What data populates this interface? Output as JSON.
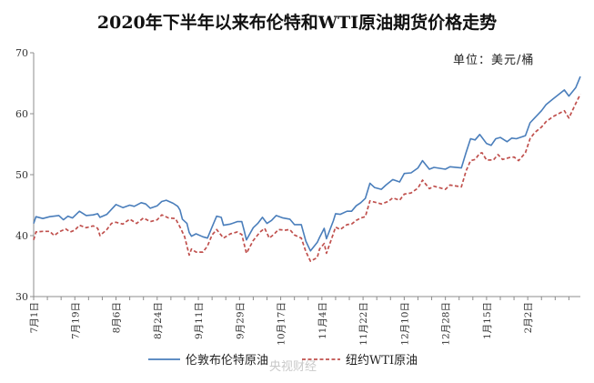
{
  "chart_data": {
    "type": "line",
    "title": "2020年下半年以来布伦特和WTI原油期货价格走势",
    "unit_label": "单位：美元/桶",
    "ylim": [
      30,
      70
    ],
    "yticks": [
      30,
      40,
      50,
      60,
      70
    ],
    "xlim": [
      "2020-07-01",
      "2021-02-25"
    ],
    "xtick_labels": [
      {
        "date": "2020-07-01",
        "label": "7月1日"
      },
      {
        "date": "2020-07-19",
        "label": "7月19日"
      },
      {
        "date": "2020-08-06",
        "label": "8月6日"
      },
      {
        "date": "2020-08-24",
        "label": "8月24日"
      },
      {
        "date": "2020-09-11",
        "label": "9月11日"
      },
      {
        "date": "2020-09-29",
        "label": "9月29日"
      },
      {
        "date": "2020-10-17",
        "label": "10月17日"
      },
      {
        "date": "2020-11-04",
        "label": "11月4日"
      },
      {
        "date": "2020-11-22",
        "label": "11月22日"
      },
      {
        "date": "2020-12-10",
        "label": "12月10日"
      },
      {
        "date": "2020-12-28",
        "label": "12月28日"
      },
      {
        "date": "2021-01-15",
        "label": "1月15日"
      },
      {
        "date": "2021-02-02",
        "label": "2月2日"
      }
    ],
    "grid": false,
    "legend_position": "bottom",
    "series": [
      {
        "name": "伦敦布伦特原油",
        "color": "#4a7ebb",
        "style": "solid",
        "points": [
          [
            "2020-07-01",
            42.0
          ],
          [
            "2020-07-02",
            43.1
          ],
          [
            "2020-07-05",
            42.8
          ],
          [
            "2020-07-08",
            43.1
          ],
          [
            "2020-07-12",
            43.3
          ],
          [
            "2020-07-14",
            42.6
          ],
          [
            "2020-07-16",
            43.2
          ],
          [
            "2020-07-18",
            42.9
          ],
          [
            "2020-07-21",
            44.0
          ],
          [
            "2020-07-24",
            43.3
          ],
          [
            "2020-07-27",
            43.4
          ],
          [
            "2020-07-29",
            43.6
          ],
          [
            "2020-07-30",
            43.0
          ],
          [
            "2020-08-02",
            43.5
          ],
          [
            "2020-08-04",
            44.3
          ],
          [
            "2020-08-06",
            45.1
          ],
          [
            "2020-08-09",
            44.6
          ],
          [
            "2020-08-12",
            45.0
          ],
          [
            "2020-08-14",
            44.8
          ],
          [
            "2020-08-17",
            45.4
          ],
          [
            "2020-08-19",
            45.2
          ],
          [
            "2020-08-21",
            44.5
          ],
          [
            "2020-08-24",
            44.9
          ],
          [
            "2020-08-26",
            45.6
          ],
          [
            "2020-08-28",
            45.8
          ],
          [
            "2020-08-31",
            45.3
          ],
          [
            "2020-09-02",
            44.8
          ],
          [
            "2020-09-03",
            44.2
          ],
          [
            "2020-09-04",
            42.7
          ],
          [
            "2020-09-06",
            42.0
          ],
          [
            "2020-09-07",
            40.5
          ],
          [
            "2020-09-08",
            39.9
          ],
          [
            "2020-09-10",
            40.3
          ],
          [
            "2020-09-13",
            39.8
          ],
          [
            "2020-09-15",
            39.6
          ],
          [
            "2020-09-17",
            41.4
          ],
          [
            "2020-09-19",
            43.2
          ],
          [
            "2020-09-21",
            43.0
          ],
          [
            "2020-09-22",
            41.7
          ],
          [
            "2020-09-25",
            41.9
          ],
          [
            "2020-09-28",
            42.3
          ],
          [
            "2020-09-30",
            42.3
          ],
          [
            "2020-10-01",
            40.9
          ],
          [
            "2020-10-02",
            39.3
          ],
          [
            "2020-10-05",
            41.3
          ],
          [
            "2020-10-07",
            42.0
          ],
          [
            "2020-10-09",
            43.0
          ],
          [
            "2020-10-11",
            42.0
          ],
          [
            "2020-10-13",
            42.5
          ],
          [
            "2020-10-15",
            43.3
          ],
          [
            "2020-10-18",
            42.9
          ],
          [
            "2020-10-21",
            42.7
          ],
          [
            "2020-10-23",
            41.8
          ],
          [
            "2020-10-26",
            41.8
          ],
          [
            "2020-10-28",
            39.1
          ],
          [
            "2020-10-30",
            37.5
          ],
          [
            "2020-11-02",
            38.9
          ],
          [
            "2020-11-03",
            39.7
          ],
          [
            "2020-11-05",
            41.2
          ],
          [
            "2020-11-06",
            39.5
          ],
          [
            "2020-11-09",
            42.4
          ],
          [
            "2020-11-10",
            43.6
          ],
          [
            "2020-11-12",
            43.5
          ],
          [
            "2020-11-15",
            44.0
          ],
          [
            "2020-11-17",
            44.0
          ],
          [
            "2020-11-19",
            44.9
          ],
          [
            "2020-11-21",
            45.4
          ],
          [
            "2020-11-23",
            46.1
          ],
          [
            "2020-11-25",
            48.6
          ],
          [
            "2020-11-27",
            47.9
          ],
          [
            "2020-11-30",
            47.6
          ],
          [
            "2020-12-02",
            48.3
          ],
          [
            "2020-12-05",
            49.2
          ],
          [
            "2020-12-08",
            48.8
          ],
          [
            "2020-12-10",
            50.2
          ],
          [
            "2020-12-13",
            50.3
          ],
          [
            "2020-12-16",
            51.1
          ],
          [
            "2020-12-18",
            52.3
          ],
          [
            "2020-12-21",
            50.9
          ],
          [
            "2020-12-23",
            51.2
          ],
          [
            "2020-12-28",
            50.9
          ],
          [
            "2020-12-30",
            51.3
          ],
          [
            "2021-01-04",
            51.1
          ],
          [
            "2021-01-06",
            53.6
          ],
          [
            "2021-01-08",
            55.9
          ],
          [
            "2021-01-10",
            55.7
          ],
          [
            "2021-01-12",
            56.6
          ],
          [
            "2021-01-13",
            56.1
          ],
          [
            "2021-01-15",
            55.1
          ],
          [
            "2021-01-17",
            54.8
          ],
          [
            "2021-01-19",
            55.9
          ],
          [
            "2021-01-21",
            56.1
          ],
          [
            "2021-01-24",
            55.4
          ],
          [
            "2021-01-26",
            56.0
          ],
          [
            "2021-01-28",
            55.9
          ],
          [
            "2021-02-01",
            56.4
          ],
          [
            "2021-02-03",
            58.5
          ],
          [
            "2021-02-05",
            59.3
          ],
          [
            "2021-02-08",
            60.5
          ],
          [
            "2021-02-10",
            61.5
          ],
          [
            "2021-02-13",
            62.4
          ],
          [
            "2021-02-16",
            63.3
          ],
          [
            "2021-02-18",
            63.9
          ],
          [
            "2021-02-20",
            62.9
          ],
          [
            "2021-02-23",
            64.3
          ],
          [
            "2021-02-25",
            66.1
          ]
        ]
      },
      {
        "name": "纽约WTI原油",
        "color": "#c0504d",
        "style": "dashed",
        "points": [
          [
            "2020-07-01",
            39.3
          ],
          [
            "2020-07-02",
            40.6
          ],
          [
            "2020-07-05",
            40.7
          ],
          [
            "2020-07-08",
            40.7
          ],
          [
            "2020-07-10",
            40.0
          ],
          [
            "2020-07-12",
            40.6
          ],
          [
            "2020-07-15",
            41.1
          ],
          [
            "2020-07-17",
            40.6
          ],
          [
            "2020-07-19",
            40.9
          ],
          [
            "2020-07-21",
            41.7
          ],
          [
            "2020-07-24",
            41.3
          ],
          [
            "2020-07-27",
            41.6
          ],
          [
            "2020-07-29",
            41.2
          ],
          [
            "2020-07-30",
            40.0
          ],
          [
            "2020-08-02",
            41.0
          ],
          [
            "2020-08-04",
            42.0
          ],
          [
            "2020-08-06",
            42.2
          ],
          [
            "2020-08-09",
            41.9
          ],
          [
            "2020-08-12",
            42.7
          ],
          [
            "2020-08-15",
            42.0
          ],
          [
            "2020-08-18",
            42.9
          ],
          [
            "2020-08-21",
            42.3
          ],
          [
            "2020-08-24",
            42.6
          ],
          [
            "2020-08-26",
            43.4
          ],
          [
            "2020-08-29",
            42.9
          ],
          [
            "2020-09-01",
            42.8
          ],
          [
            "2020-09-03",
            41.4
          ],
          [
            "2020-09-05",
            39.8
          ],
          [
            "2020-09-07",
            36.8
          ],
          [
            "2020-09-08",
            37.8
          ],
          [
            "2020-09-10",
            37.3
          ],
          [
            "2020-09-13",
            37.3
          ],
          [
            "2020-09-15",
            38.3
          ],
          [
            "2020-09-17",
            40.1
          ],
          [
            "2020-09-19",
            41.0
          ],
          [
            "2020-09-22",
            39.6
          ],
          [
            "2020-09-25",
            40.3
          ],
          [
            "2020-09-28",
            40.6
          ],
          [
            "2020-09-30",
            40.2
          ],
          [
            "2020-10-02",
            37.1
          ],
          [
            "2020-10-05",
            39.2
          ],
          [
            "2020-10-08",
            40.6
          ],
          [
            "2020-10-10",
            41.2
          ],
          [
            "2020-10-12",
            39.6
          ],
          [
            "2020-10-14",
            40.2
          ],
          [
            "2020-10-16",
            41.0
          ],
          [
            "2020-10-19",
            40.9
          ],
          [
            "2020-10-21",
            41.0
          ],
          [
            "2020-10-23",
            40.1
          ],
          [
            "2020-10-26",
            39.6
          ],
          [
            "2020-10-28",
            37.4
          ],
          [
            "2020-10-30",
            35.8
          ],
          [
            "2020-11-02",
            36.4
          ],
          [
            "2020-11-03",
            37.8
          ],
          [
            "2020-11-05",
            38.7
          ],
          [
            "2020-11-06",
            37.1
          ],
          [
            "2020-11-09",
            40.3
          ],
          [
            "2020-11-10",
            41.4
          ],
          [
            "2020-11-12",
            41.0
          ],
          [
            "2020-11-15",
            41.8
          ],
          [
            "2020-11-17",
            41.9
          ],
          [
            "2020-11-19",
            42.5
          ],
          [
            "2020-11-21",
            42.9
          ],
          [
            "2020-11-23",
            43.1
          ],
          [
            "2020-11-25",
            45.7
          ],
          [
            "2020-11-28",
            45.4
          ],
          [
            "2020-11-30",
            45.2
          ],
          [
            "2020-12-03",
            45.6
          ],
          [
            "2020-12-05",
            46.2
          ],
          [
            "2020-12-08",
            45.8
          ],
          [
            "2020-12-10",
            46.8
          ],
          [
            "2020-12-13",
            47.0
          ],
          [
            "2020-12-16",
            47.8
          ],
          [
            "2020-12-18",
            49.1
          ],
          [
            "2020-12-21",
            47.7
          ],
          [
            "2020-12-23",
            48.1
          ],
          [
            "2020-12-28",
            47.6
          ],
          [
            "2020-12-30",
            48.3
          ],
          [
            "2021-01-04",
            48.0
          ],
          [
            "2021-01-06",
            50.6
          ],
          [
            "2021-01-08",
            52.3
          ],
          [
            "2021-01-10",
            52.5
          ],
          [
            "2021-01-12",
            53.5
          ],
          [
            "2021-01-13",
            53.6
          ],
          [
            "2021-01-15",
            52.4
          ],
          [
            "2021-01-18",
            52.4
          ],
          [
            "2021-01-20",
            53.3
          ],
          [
            "2021-01-22",
            52.5
          ],
          [
            "2021-01-25",
            52.8
          ],
          [
            "2021-01-27",
            52.9
          ],
          [
            "2021-01-29",
            52.3
          ],
          [
            "2021-02-01",
            53.6
          ],
          [
            "2021-02-03",
            55.9
          ],
          [
            "2021-02-05",
            56.9
          ],
          [
            "2021-02-08",
            57.8
          ],
          [
            "2021-02-10",
            58.7
          ],
          [
            "2021-02-13",
            59.5
          ],
          [
            "2021-02-16",
            60.1
          ],
          [
            "2021-02-18",
            60.5
          ],
          [
            "2021-02-20",
            59.3
          ],
          [
            "2021-02-23",
            61.7
          ],
          [
            "2021-02-25",
            63.2
          ]
        ]
      }
    ]
  },
  "watermark": "央视财经"
}
